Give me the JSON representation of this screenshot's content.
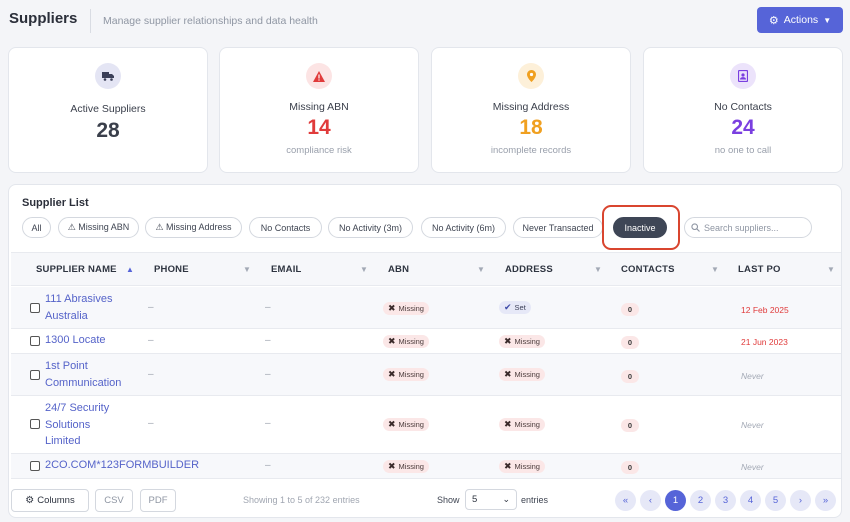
{
  "header": {
    "title": "Suppliers",
    "subtitle": "Manage supplier relationships and data health",
    "actions_label": "Actions",
    "accent": "#5664d8"
  },
  "stats": [
    {
      "label": "Active Suppliers",
      "value": "28",
      "sub": "",
      "icon": "truck-icon",
      "color": "#3a3f4b"
    },
    {
      "label": "Missing ABN",
      "value": "14",
      "sub": "compliance risk",
      "icon": "warning-icon",
      "color": "#e03b3b"
    },
    {
      "label": "Missing Address",
      "value": "18",
      "sub": "incomplete records",
      "icon": "map-pin-icon",
      "color": "#f0a020"
    },
    {
      "label": "No Contacts",
      "value": "24",
      "sub": "no one to call",
      "icon": "contact-card-icon",
      "color": "#7a3fe0"
    }
  ],
  "list": {
    "title": "Supplier List",
    "filters": [
      "All",
      "⚠ Missing ABN",
      "⚠ Missing Address",
      "No Contacts",
      "No Activity (3m)",
      "No Activity (6m)",
      "Never Transacted",
      "Inactive"
    ],
    "active_filter": "Inactive",
    "search_placeholder": "Search suppliers..."
  },
  "table": {
    "columns": [
      "SUPPLIER NAME",
      "PHONE",
      "EMAIL",
      "ABN",
      "ADDRESS",
      "CONTACTS",
      "LAST PO"
    ],
    "rows": [
      {
        "name": "111 Abrasives Australia",
        "phone": "–",
        "email": "–",
        "abn": "Missing",
        "address": "Set",
        "contacts": "0",
        "last_po": "12 Feb 2025"
      },
      {
        "name": "1300 Locate",
        "phone": "–",
        "email": "–",
        "abn": "Missing",
        "address": "Missing",
        "contacts": "0",
        "last_po": "21 Jun 2023"
      },
      {
        "name": "1st Point Communication",
        "phone": "–",
        "email": "–",
        "abn": "Missing",
        "address": "Missing",
        "contacts": "0",
        "last_po": "Never"
      },
      {
        "name": "24/7 Security Solutions Limited",
        "phone": "–",
        "email": "–",
        "abn": "Missing",
        "address": "Missing",
        "contacts": "0",
        "last_po": "Never"
      },
      {
        "name": "2CO.COM*123FORMBUILDER",
        "phone": "–",
        "email": "–",
        "abn": "Missing",
        "address": "Missing",
        "contacts": "0",
        "last_po": "Never"
      }
    ]
  },
  "footer": {
    "columns_label": "Columns",
    "csv_label": "CSV",
    "pdf_label": "PDF",
    "showing_text": "Showing 1 to 5 of 232 entries",
    "show_label": "Show",
    "page_size": "5",
    "entries_label": "entries",
    "pages": [
      "1",
      "2",
      "3",
      "4",
      "5"
    ],
    "current_page": "1",
    "first": "«",
    "prev": "‹",
    "next": "›",
    "last": "»"
  }
}
